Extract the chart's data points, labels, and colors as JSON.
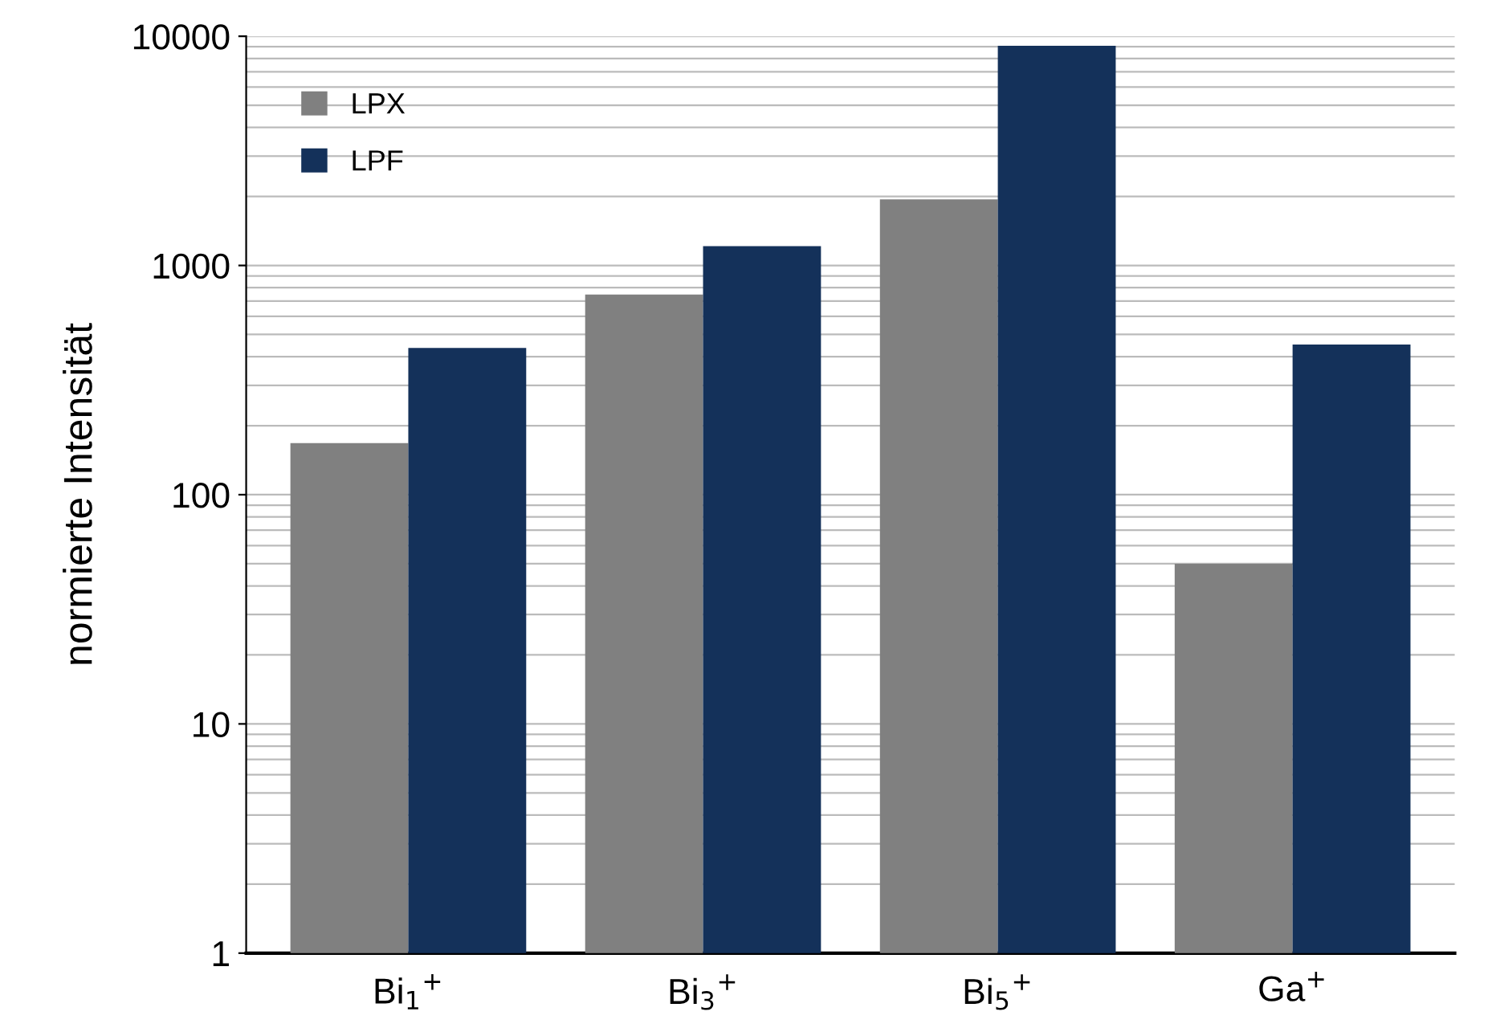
{
  "chart_data": {
    "type": "bar",
    "ylabel": "normierte Intensität",
    "categories": [
      "Bi$_{1}$$^{+}$",
      "Bi$_{3}$$^{+}$",
      "Bi$_{5}$$^{+}$",
      "Ga$^{+}$"
    ],
    "series": [
      {
        "name": "LPX",
        "color": "#808080",
        "values": [
          168,
          747,
          1944,
          50
        ]
      },
      {
        "name": "LPF",
        "color": "#14315a",
        "values": [
          437,
          1215,
          9080,
          452
        ]
      }
    ],
    "log": "y",
    "ylim": [
      1,
      10000
    ],
    "yticks": [
      1,
      10,
      100,
      1000,
      10000
    ],
    "grid": "y",
    "legend": "top left"
  }
}
